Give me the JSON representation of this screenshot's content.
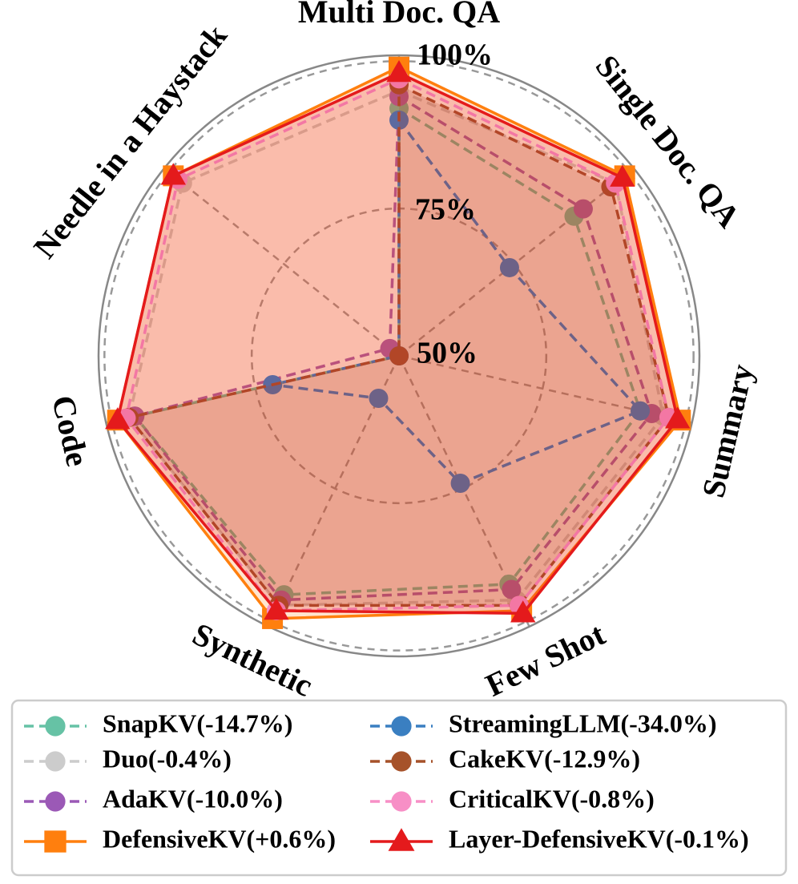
{
  "chart_data": {
    "type": "radar",
    "title": "",
    "categories": [
      "Multi Doc. QA",
      "Single Doc. QA",
      "Summary",
      "Few Shot",
      "Synthetic",
      "Code",
      "Needle in a Haystack"
    ],
    "rlim": [
      50,
      101
    ],
    "radial_ticks": [
      {
        "value": 50,
        "label": "50%"
      },
      {
        "value": 75,
        "label": "75%"
      },
      {
        "value": 100,
        "label": "100%"
      }
    ],
    "legend_position": "bottom",
    "series": [
      {
        "name": "SnapKV(-14.7%)",
        "color": "#66c2a5",
        "dashed": true,
        "marker": "circle",
        "fill": false,
        "values": [
          92,
          88,
          92,
          93,
          95,
          96,
          50
        ]
      },
      {
        "name": "Duo(-0.4%)",
        "color": "#cccccc",
        "dashed": true,
        "marker": "circle",
        "fill": false,
        "values": [
          95,
          97,
          96,
          96,
          97,
          97,
          97
        ]
      },
      {
        "name": "AdaKV(-10.0%)",
        "color": "#9b59b6",
        "dashed": true,
        "marker": "circle",
        "fill": false,
        "values": [
          94,
          90,
          94,
          94,
          96,
          96,
          52
        ]
      },
      {
        "name": "DefensiveKV(+0.6%)",
        "color": "#ff7f0e",
        "dashed": false,
        "marker": "square",
        "fill": true,
        "values": [
          99,
          99,
          99,
          98,
          99.5,
          99,
          99
        ]
      },
      {
        "name": "StreamingLLM(-34.0%)",
        "color": "#3a7fc1",
        "dashed": true,
        "marker": "circle",
        "fill": false,
        "values": [
          90,
          74,
          92,
          74,
          58,
          72,
          50
        ]
      },
      {
        "name": "CakeKV(-12.9%)",
        "color": "#a6522a",
        "dashed": true,
        "marker": "circle",
        "fill": true,
        "values": [
          96,
          96,
          97,
          97,
          97,
          97,
          50
        ]
      },
      {
        "name": "CriticalKV(-0.8%)",
        "color": "#f78fc6",
        "dashed": true,
        "marker": "circle",
        "fill": false,
        "values": [
          97,
          97,
          97,
          97,
          98,
          97.5,
          98
        ]
      },
      {
        "name": "Layer-DefensiveKV(-0.1%)",
        "color": "#e41a1c",
        "dashed": false,
        "marker": "triangle",
        "fill": true,
        "values": [
          98,
          98.5,
          98.5,
          98.5,
          98,
          99,
          99
        ]
      }
    ]
  }
}
